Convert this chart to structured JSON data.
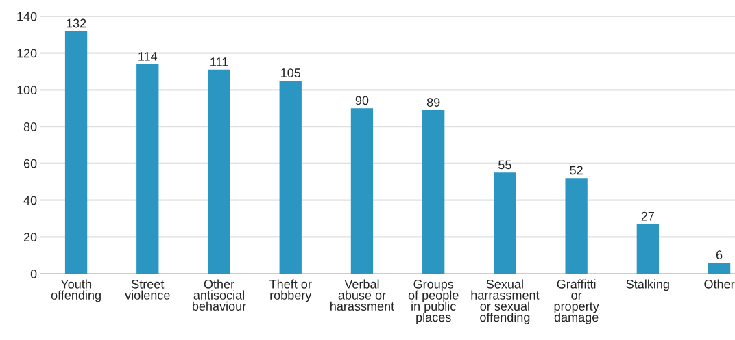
{
  "chart_data": {
    "type": "bar",
    "categories": [
      "Youth\noffending",
      "Street\nviolence",
      "Other\nantisocial\nbehaviour",
      "Theft or\nrobbery",
      "Verbal\nabuse or\nharassment",
      "Groups\nof people\nin public\nplaces",
      "Sexual\nharrassment\nor sexual\noffending",
      "Graffitti\nor\nproperty\ndamage",
      "Stalking",
      "Other"
    ],
    "values": [
      132,
      114,
      111,
      105,
      90,
      89,
      55,
      52,
      27,
      6
    ],
    "color": "#2a96c1",
    "ylim": [
      0,
      140
    ],
    "yticks": [
      0,
      20,
      40,
      60,
      80,
      100,
      120,
      140
    ],
    "grid": "y",
    "data_labels": true
  }
}
